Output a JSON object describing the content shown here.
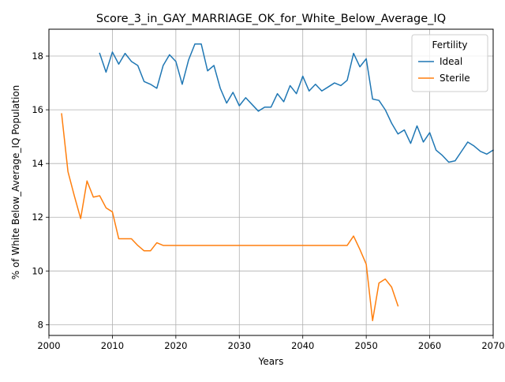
{
  "chart_data": {
    "type": "line",
    "title": "Score_3_in_GAY_MARRIAGE_OK_for_White_Below_Average_IQ",
    "xlabel": "Years",
    "ylabel": "% of White Below_Average_IQ Population",
    "xlim": [
      2000,
      2070
    ],
    "ylim": [
      7.6,
      19.0
    ],
    "xticks": [
      2000,
      2010,
      2020,
      2030,
      2040,
      2050,
      2060,
      2070
    ],
    "yticks": [
      8,
      10,
      12,
      14,
      16,
      18
    ],
    "grid": true,
    "legend": {
      "title": "Fertility",
      "placement": "top-right"
    },
    "series": [
      {
        "name": "Ideal",
        "color": "#1f77b4",
        "x": [
          2008,
          2009,
          2010,
          2011,
          2012,
          2013,
          2014,
          2015,
          2016,
          2017,
          2018,
          2019,
          2020,
          2021,
          2022,
          2023,
          2024,
          2025,
          2026,
          2027,
          2028,
          2029,
          2030,
          2031,
          2032,
          2033,
          2034,
          2035,
          2036,
          2037,
          2038,
          2039,
          2040,
          2041,
          2042,
          2043,
          2044,
          2045,
          2046,
          2047,
          2048,
          2049,
          2050,
          2051,
          2052,
          2053,
          2054,
          2055,
          2056,
          2057,
          2058,
          2059,
          2060,
          2061,
          2062,
          2063,
          2064,
          2065,
          2066,
          2067,
          2068,
          2069,
          2070
        ],
        "values": [
          18.1,
          17.4,
          18.15,
          17.7,
          18.1,
          17.8,
          17.65,
          17.05,
          16.95,
          16.8,
          17.65,
          18.05,
          17.8,
          16.95,
          17.85,
          18.45,
          18.45,
          17.45,
          17.65,
          16.8,
          16.25,
          16.65,
          16.15,
          16.45,
          16.2,
          15.95,
          16.1,
          16.1,
          16.6,
          16.3,
          16.9,
          16.6,
          17.25,
          16.7,
          16.95,
          16.7,
          16.85,
          17.0,
          16.9,
          17.1,
          18.1,
          17.6,
          17.9,
          16.4,
          16.35,
          16.0,
          15.5,
          15.1,
          15.25,
          14.75,
          15.4,
          14.8,
          15.15,
          14.5,
          14.3,
          14.05,
          14.1,
          14.45,
          14.8,
          14.65,
          14.45,
          14.35,
          14.5
        ]
      },
      {
        "name": "Sterile",
        "color": "#ff7f0e",
        "x": [
          2002,
          2003,
          2004,
          2005,
          2006,
          2007,
          2008,
          2009,
          2010,
          2011,
          2012,
          2013,
          2014,
          2015,
          2016,
          2017,
          2018,
          2019,
          2020,
          2021,
          2022,
          2023,
          2024,
          2025,
          2026,
          2027,
          2028,
          2029,
          2030,
          2031,
          2032,
          2033,
          2034,
          2035,
          2036,
          2037,
          2038,
          2039,
          2040,
          2041,
          2042,
          2043,
          2044,
          2045,
          2046,
          2047,
          2048,
          2049,
          2050,
          2051,
          2052,
          2053,
          2054,
          2055
        ],
        "values": [
          15.85,
          13.7,
          12.8,
          11.95,
          13.35,
          12.75,
          12.8,
          12.35,
          12.2,
          11.2,
          11.2,
          11.2,
          10.95,
          10.75,
          10.75,
          11.05,
          10.95,
          10.95,
          10.95,
          10.95,
          10.95,
          10.95,
          10.95,
          10.95,
          10.95,
          10.95,
          10.95,
          10.95,
          10.95,
          10.95,
          10.95,
          10.95,
          10.95,
          10.95,
          10.95,
          10.95,
          10.95,
          10.95,
          10.95,
          10.95,
          10.95,
          10.95,
          10.95,
          10.95,
          10.95,
          10.95,
          11.3,
          10.8,
          10.25,
          8.15,
          9.55,
          9.7,
          9.4,
          8.7
        ]
      }
    ]
  }
}
